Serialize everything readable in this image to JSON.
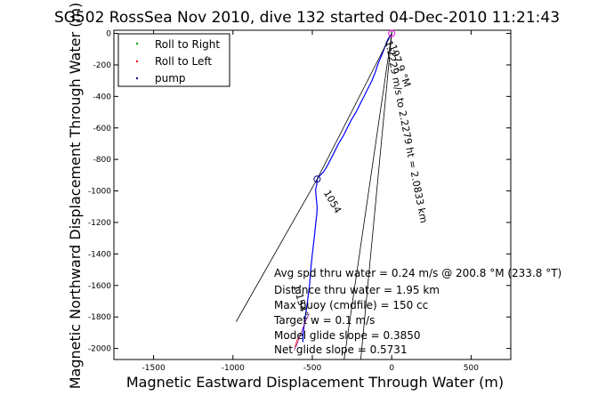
{
  "chart_data": {
    "type": "line",
    "title": "SG502 RossSea Nov 2010, dive 132 started 04-Dec-2010 11:21:43",
    "xlabel": "Magnetic Eastward Displacement Through Water (m)",
    "ylabel": "Magnetic Northward Displacement Through Water (m)",
    "xlim": [
      -1750,
      750
    ],
    "ylim": [
      -2070,
      20
    ],
    "x_ticks": [
      -1500,
      -1000,
      -500,
      0,
      500
    ],
    "y_ticks": [
      0,
      -200,
      -400,
      -600,
      -800,
      -1000,
      -1200,
      -1400,
      -1600,
      -1800,
      -2000
    ],
    "grid": false,
    "legend_position": "top-left",
    "legend": [
      {
        "label": "Roll to Right",
        "color": "#00aa00",
        "marker": "."
      },
      {
        "label": "Roll to Left",
        "color": "#ff0000",
        "marker": "."
      },
      {
        "label": "pump",
        "color": "#000080",
        "marker": "."
      }
    ],
    "series": [
      {
        "color": "#0000ff",
        "x": [
          0,
          -10,
          -25,
          -45,
          -60,
          -85,
          -105,
          -125,
          -150,
          -175,
          -200,
          -225,
          -255,
          -280,
          -305,
          -335,
          -360,
          -385,
          -405,
          -430,
          -450,
          -465,
          -470,
          -472,
          -480,
          -475,
          -470,
          -472,
          -478,
          -488,
          -500,
          -510,
          -518,
          -530,
          -545,
          -558,
          -560
        ],
        "y": [
          -5,
          -15,
          -40,
          -90,
          -130,
          -190,
          -250,
          -300,
          -350,
          -400,
          -450,
          -500,
          -550,
          -600,
          -650,
          -700,
          -750,
          -800,
          -840,
          -880,
          -900,
          -915,
          -930,
          -960,
          -990,
          -1050,
          -1100,
          -1150,
          -1200,
          -1300,
          -1400,
          -1500,
          -1600,
          -1700,
          -1800,
          -1900,
          -1960
        ]
      },
      {
        "color": "#000000",
        "x": [
          0,
          -470,
          -980
        ],
        "y": [
          0,
          -925,
          -1830
        ]
      },
      {
        "color": "#000000",
        "x": [
          0,
          -300
        ],
        "y": [
          0,
          -2070
        ]
      },
      {
        "color": "#000000",
        "x": [
          0,
          -195
        ],
        "y": [
          0,
          -2070
        ]
      },
      {
        "color": "#ff0000",
        "x": [
          -590,
          -600,
          -610
        ],
        "y": [
          -1930,
          -1960,
          -1990
        ]
      },
      {
        "color": "#800080",
        "x": [
          -520,
          -540,
          -555,
          -570,
          -585,
          -600,
          -615
        ],
        "y": [
          -1780,
          -1820,
          -1860,
          -1900,
          -1940,
          -1980,
          -2010
        ]
      }
    ],
    "markers": [
      {
        "x": 0,
        "y": 0,
        "color": "#ff00ff"
      },
      {
        "x": -470,
        "y": -925,
        "color": "#000080"
      }
    ],
    "annotations": [
      {
        "text": "197.9 °M",
        "x": -15,
        "y": -80,
        "rotation": 70
      },
      {
        "text": "1.2229 m/s to 2.2279 ht = 2.0833 km",
        "x": -40,
        "y": -50,
        "rotation": 79
      },
      {
        "text": "1.154°",
        "x": -620,
        "y": -1600,
        "rotation": 75
      },
      {
        "text": "1054",
        "x": -430,
        "y": -1010,
        "rotation": 60
      }
    ],
    "info_lines": [
      "Avg spd thru water =  0.24 m/s @ 200.8   °M (233.8 °T)",
      "Distance thru water =  1.95 km",
      "Max buoy (cmdfile) = 150 cc",
      "Target w = 0.1 m/s",
      "Model glide slope = 0.3850",
      "Net glide slope = 0.5731"
    ]
  }
}
